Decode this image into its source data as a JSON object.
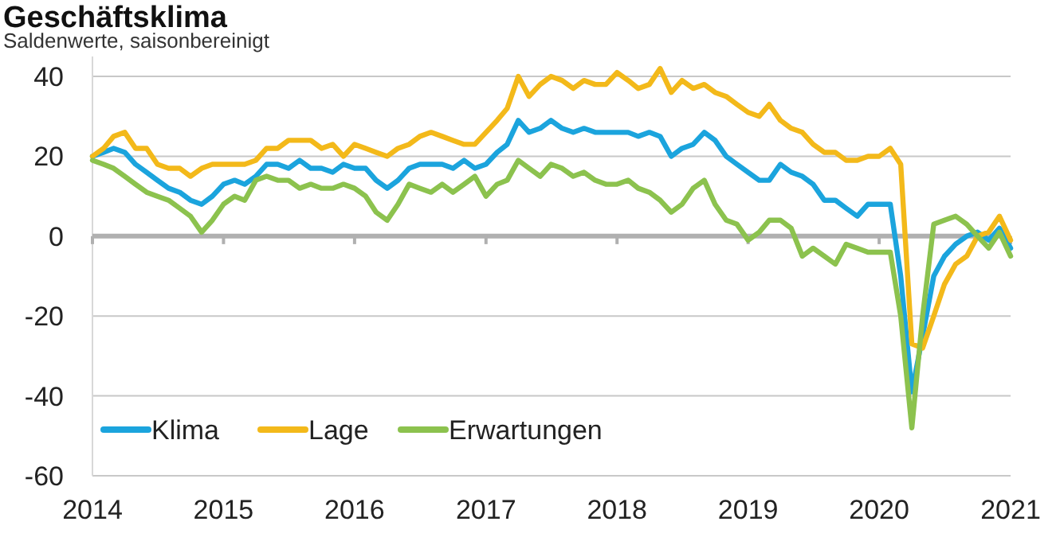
{
  "chart_data": {
    "type": "line",
    "title": "Geschäftsklima",
    "subtitle": "Saldenwerte, saisonbereinigt",
    "x": [
      "2014-01",
      "2014-02",
      "2014-03",
      "2014-04",
      "2014-05",
      "2014-06",
      "2014-07",
      "2014-08",
      "2014-09",
      "2014-10",
      "2014-11",
      "2014-12",
      "2015-01",
      "2015-02",
      "2015-03",
      "2015-04",
      "2015-05",
      "2015-06",
      "2015-07",
      "2015-08",
      "2015-09",
      "2015-10",
      "2015-11",
      "2015-12",
      "2016-01",
      "2016-02",
      "2016-03",
      "2016-04",
      "2016-05",
      "2016-06",
      "2016-07",
      "2016-08",
      "2016-09",
      "2016-10",
      "2016-11",
      "2016-12",
      "2017-01",
      "2017-02",
      "2017-03",
      "2017-04",
      "2017-05",
      "2017-06",
      "2017-07",
      "2017-08",
      "2017-09",
      "2017-10",
      "2017-11",
      "2017-12",
      "2018-01",
      "2018-02",
      "2018-03",
      "2018-04",
      "2018-05",
      "2018-06",
      "2018-07",
      "2018-08",
      "2018-09",
      "2018-10",
      "2018-11",
      "2018-12",
      "2019-01",
      "2019-02",
      "2019-03",
      "2019-04",
      "2019-05",
      "2019-06",
      "2019-07",
      "2019-08",
      "2019-09",
      "2019-10",
      "2019-11",
      "2019-12",
      "2020-01",
      "2020-02",
      "2020-03",
      "2020-04",
      "2020-05",
      "2020-06",
      "2020-07",
      "2020-08",
      "2020-09",
      "2020-10",
      "2020-11",
      "2020-12",
      "2021-01"
    ],
    "series": [
      {
        "name": "Klima",
        "color": "#1ba4dd",
        "values": [
          20,
          21,
          22,
          21,
          18,
          16,
          14,
          12,
          11,
          9,
          8,
          10,
          13,
          14,
          13,
          15,
          18,
          18,
          17,
          19,
          17,
          17,
          16,
          18,
          17,
          17,
          14,
          12,
          14,
          17,
          18,
          18,
          18,
          17,
          19,
          17,
          18,
          21,
          23,
          29,
          26,
          27,
          29,
          27,
          26,
          27,
          26,
          26,
          26,
          26,
          25,
          26,
          25,
          20,
          22,
          23,
          26,
          24,
          20,
          18,
          16,
          14,
          14,
          18,
          16,
          15,
          13,
          9,
          9,
          7,
          5,
          8,
          8,
          8,
          -10,
          -39,
          -25,
          -10,
          -5,
          -2,
          0,
          1,
          -1,
          2,
          -3
        ]
      },
      {
        "name": "Lage",
        "color": "#f3b91a",
        "values": [
          20,
          22,
          25,
          26,
          22,
          22,
          18,
          17,
          17,
          15,
          17,
          18,
          18,
          18,
          18,
          19,
          22,
          22,
          24,
          24,
          24,
          22,
          23,
          20,
          23,
          22,
          21,
          20,
          22,
          23,
          25,
          26,
          25,
          24,
          23,
          23,
          26,
          29,
          32,
          40,
          35,
          38,
          40,
          39,
          37,
          39,
          38,
          38,
          41,
          39,
          37,
          38,
          42,
          36,
          39,
          37,
          38,
          36,
          35,
          33,
          31,
          30,
          33,
          29,
          27,
          26,
          23,
          21,
          21,
          19,
          19,
          20,
          20,
          22,
          18,
          -27,
          -28,
          -20,
          -12,
          -7,
          -5,
          0,
          1,
          5,
          -1
        ]
      },
      {
        "name": "Erwartungen",
        "color": "#8cc24e",
        "values": [
          19,
          18,
          17,
          15,
          13,
          11,
          10,
          9,
          7,
          5,
          1,
          4,
          8,
          10,
          9,
          14,
          15,
          14,
          14,
          12,
          13,
          12,
          12,
          13,
          12,
          10,
          6,
          4,
          8,
          13,
          12,
          11,
          13,
          11,
          13,
          15,
          10,
          13,
          14,
          19,
          17,
          15,
          18,
          17,
          15,
          16,
          14,
          13,
          13,
          14,
          12,
          11,
          9,
          6,
          8,
          12,
          14,
          8,
          4,
          3,
          -1,
          1,
          4,
          4,
          2,
          -5,
          -3,
          -5,
          -7,
          -2,
          -3,
          -4,
          -4,
          -4,
          -20,
          -48,
          -20,
          3,
          4,
          5,
          3,
          0,
          -3,
          1,
          -5
        ]
      }
    ],
    "xlim": [
      "2014-01",
      "2021-01"
    ],
    "xticks": [
      {
        "value": "2014",
        "label": "2014"
      },
      {
        "value": "2015",
        "label": "2015"
      },
      {
        "value": "2016",
        "label": "2016"
      },
      {
        "value": "2017",
        "label": "2017"
      },
      {
        "value": "2018",
        "label": "2018"
      },
      {
        "value": "2019",
        "label": "2019"
      },
      {
        "value": "2020",
        "label": "2020"
      },
      {
        "value": "2021",
        "label": "2021"
      }
    ],
    "ylim": [
      -60,
      45
    ],
    "yticks": [
      -60,
      -40,
      -20,
      0,
      20,
      40
    ],
    "grid": "y",
    "legend": "bottom left",
    "marker": "none",
    "line_style": "solid"
  }
}
